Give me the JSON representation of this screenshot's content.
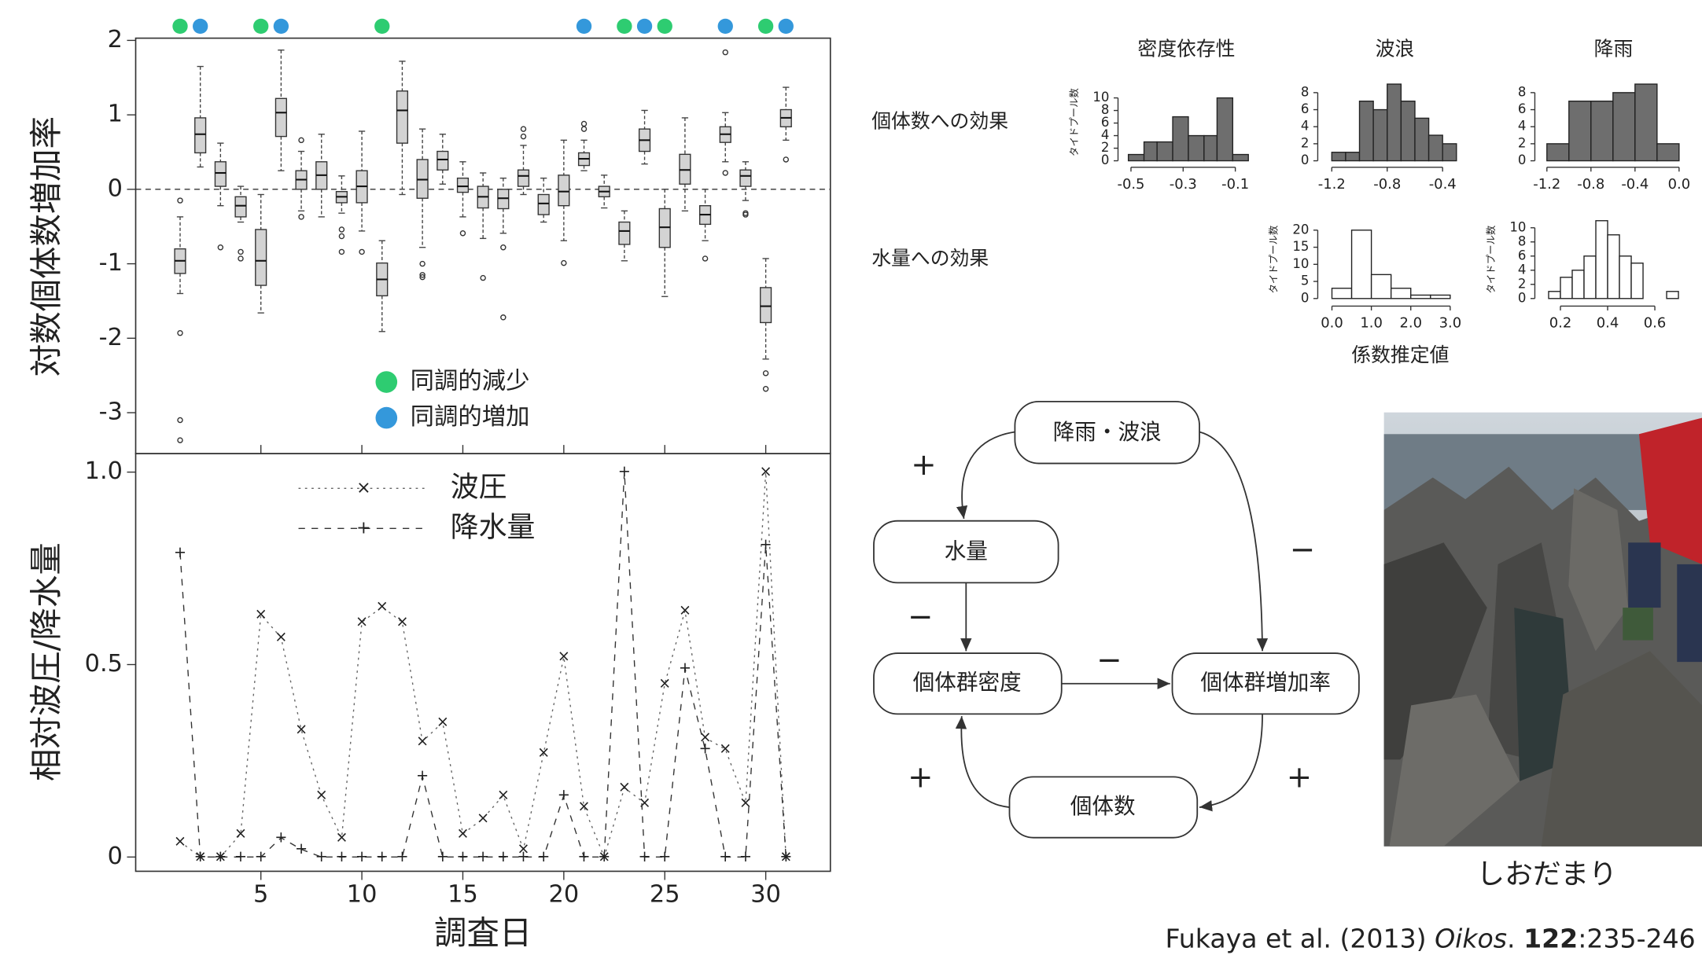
{
  "chart_data": [
    {
      "type": "box",
      "y_label": "対数個体数増加率",
      "xlim": [
        -1.2,
        33.2
      ],
      "ylim": [
        -3.55,
        2.03
      ],
      "yticks": [
        -3,
        -2,
        -1,
        0,
        1,
        2
      ],
      "reference_line": 0,
      "boxes": [
        {
          "x": 1,
          "median": -0.96,
          "q1": -1.13,
          "q3": -0.8,
          "whisker_low": -1.4,
          "whisker_high": -0.37,
          "outliers": [
            -0.15,
            -1.93,
            -3.1,
            -3.37
          ]
        },
        {
          "x": 2,
          "median": 0.74,
          "q1": 0.49,
          "q3": 0.96,
          "whisker_low": 0.3,
          "whisker_high": 1.65,
          "outliers": []
        },
        {
          "x": 3,
          "median": 0.22,
          "q1": 0.04,
          "q3": 0.37,
          "whisker_low": -0.22,
          "whisker_high": 0.62,
          "outliers": [
            -0.78
          ]
        },
        {
          "x": 4,
          "median": -0.22,
          "q1": -0.37,
          "q3": -0.1,
          "whisker_low": -0.44,
          "whisker_high": 0.04,
          "outliers": [
            -0.84,
            -0.93
          ]
        },
        {
          "x": 5,
          "median": -0.96,
          "q1": -1.29,
          "q3": -0.54,
          "whisker_low": -1.66,
          "whisker_high": -0.07,
          "outliers": []
        },
        {
          "x": 6,
          "median": 1.03,
          "q1": 0.71,
          "q3": 1.22,
          "whisker_low": 0.25,
          "whisker_high": 1.87,
          "outliers": []
        },
        {
          "x": 7,
          "median": 0.13,
          "q1": 0,
          "q3": 0.25,
          "whisker_low": -0.29,
          "whisker_high": 0.51,
          "outliers": [
            0.66,
            -0.37
          ]
        },
        {
          "x": 8,
          "median": 0.19,
          "q1": 0,
          "q3": 0.37,
          "whisker_low": -0.37,
          "whisker_high": 0.74,
          "outliers": []
        },
        {
          "x": 9,
          "median": -0.1,
          "q1": -0.18,
          "q3": -0.03,
          "whisker_low": -0.32,
          "whisker_high": 0.18,
          "outliers": [
            -0.54,
            -0.63,
            -0.84
          ]
        },
        {
          "x": 10,
          "median": 0.04,
          "q1": -0.18,
          "q3": 0.25,
          "whisker_low": -0.56,
          "whisker_high": 0.78,
          "outliers": [
            -0.84
          ]
        },
        {
          "x": 11,
          "median": -1.21,
          "q1": -1.43,
          "q3": -0.99,
          "whisker_low": -1.91,
          "whisker_high": -0.69,
          "outliers": []
        },
        {
          "x": 12,
          "median": 1.06,
          "q1": 0.62,
          "q3": 1.32,
          "whisker_low": -0.07,
          "whisker_high": 1.72,
          "outliers": []
        },
        {
          "x": 13,
          "median": 0.13,
          "q1": -0.12,
          "q3": 0.4,
          "whisker_low": -0.78,
          "whisker_high": 0.81,
          "outliers": [
            -1.0,
            -1.15,
            -1.18
          ]
        },
        {
          "x": 14,
          "median": 0.4,
          "q1": 0.26,
          "q3": 0.51,
          "whisker_low": 0.07,
          "whisker_high": 0.74,
          "outliers": []
        },
        {
          "x": 15,
          "median": 0.04,
          "q1": -0.04,
          "q3": 0.15,
          "whisker_low": -0.37,
          "whisker_high": 0.37,
          "outliers": [
            -0.59
          ]
        },
        {
          "x": 16,
          "median": -0.1,
          "q1": -0.25,
          "q3": 0.04,
          "whisker_low": -0.66,
          "whisker_high": 0.22,
          "outliers": [
            -1.19
          ]
        },
        {
          "x": 17,
          "median": -0.12,
          "q1": -0.26,
          "q3": 0,
          "whisker_low": -0.59,
          "whisker_high": 0.15,
          "outliers": [
            -0.78,
            -1.72
          ]
        },
        {
          "x": 18,
          "median": 0.18,
          "q1": 0.04,
          "q3": 0.26,
          "whisker_low": -0.07,
          "whisker_high": 0.59,
          "outliers": [
            0.81,
            0.71
          ]
        },
        {
          "x": 19,
          "median": -0.19,
          "q1": -0.34,
          "q3": -0.07,
          "whisker_low": -0.44,
          "whisker_high": 0.15,
          "outliers": []
        },
        {
          "x": 20,
          "median": -0.03,
          "q1": -0.22,
          "q3": 0.19,
          "whisker_low": -0.69,
          "whisker_high": 0.66,
          "outliers": [
            -0.99
          ]
        },
        {
          "x": 21,
          "median": 0.41,
          "q1": 0.32,
          "q3": 0.49,
          "whisker_low": 0.25,
          "whisker_high": 0.66,
          "outliers": [
            0.88,
            0.81
          ]
        },
        {
          "x": 22,
          "median": -0.03,
          "q1": -0.1,
          "q3": 0.04,
          "whisker_low": -0.25,
          "whisker_high": 0.19,
          "outliers": []
        },
        {
          "x": 23,
          "median": -0.56,
          "q1": -0.74,
          "q3": -0.44,
          "whisker_low": -0.96,
          "whisker_high": -0.29,
          "outliers": []
        },
        {
          "x": 24,
          "median": 0.66,
          "q1": 0.51,
          "q3": 0.81,
          "whisker_low": 0.34,
          "whisker_high": 1.06,
          "outliers": []
        },
        {
          "x": 25,
          "median": -0.51,
          "q1": -0.78,
          "q3": -0.26,
          "whisker_low": -1.44,
          "whisker_high": 0,
          "outliers": []
        },
        {
          "x": 26,
          "median": 0.26,
          "q1": 0.07,
          "q3": 0.47,
          "whisker_low": -0.29,
          "whisker_high": 0.96,
          "outliers": []
        },
        {
          "x": 27,
          "median": -0.34,
          "q1": -0.47,
          "q3": -0.22,
          "whisker_low": -0.69,
          "whisker_high": 0,
          "outliers": [
            -0.93
          ]
        },
        {
          "x": 28,
          "median": 0.74,
          "q1": 0.63,
          "q3": 0.84,
          "whisker_low": 0.37,
          "whisker_high": 1.03,
          "outliers": [
            1.84,
            0.22
          ]
        },
        {
          "x": 29,
          "median": 0.18,
          "q1": 0.04,
          "q3": 0.26,
          "whisker_low": -0.15,
          "whisker_high": 0.37,
          "outliers": [
            -0.32,
            -0.34
          ]
        },
        {
          "x": 30,
          "median": -1.57,
          "q1": -1.79,
          "q3": -1.32,
          "whisker_low": -2.28,
          "whisker_high": -0.93,
          "outliers": [
            -2.47,
            -2.68
          ]
        },
        {
          "x": 31,
          "median": 0.96,
          "q1": 0.84,
          "q3": 1.07,
          "whisker_low": 0.66,
          "whisker_high": 1.37,
          "outliers": [
            0.4
          ]
        }
      ],
      "markers": [
        {
          "name": "同調的減少",
          "color": "#2ecc71",
          "x": [
            1,
            5,
            11,
            23,
            25,
            30
          ]
        },
        {
          "name": "同調的増加",
          "color": "#3498db",
          "x": [
            2,
            6,
            21,
            24,
            28,
            31
          ]
        }
      ]
    },
    {
      "type": "line",
      "x_label": "調査日",
      "y_label": "相対波圧/降水量",
      "xlim": [
        -1.2,
        33.2
      ],
      "xticks": [
        5,
        10,
        15,
        20,
        25,
        30
      ],
      "ylim": [
        -0.037,
        1.048
      ],
      "yticks": [
        0,
        0.5,
        {
          "value": 1,
          "label": "1.0"
        }
      ],
      "x": [
        1,
        2,
        3,
        4,
        5,
        6,
        7,
        8,
        9,
        10,
        11,
        12,
        13,
        14,
        15,
        16,
        17,
        18,
        19,
        20,
        21,
        22,
        23,
        24,
        25,
        26,
        27,
        28,
        29,
        30,
        31
      ],
      "series": [
        {
          "name": "波圧",
          "marker": "×",
          "dash": "2,4",
          "color": "#666666",
          "values": [
            0.04,
            0,
            0,
            0.06,
            0.63,
            0.57,
            0.33,
            0.16,
            0.05,
            0.61,
            0.65,
            0.61,
            0.3,
            0.35,
            0.06,
            0.1,
            0.16,
            0.02,
            0.27,
            0.52,
            0.13,
            0,
            0.18,
            0.14,
            0.45,
            0.64,
            0.31,
            0.28,
            0.14,
            1.0,
            0
          ]
        },
        {
          "name": "降水量",
          "marker": "+",
          "dash": "6,6",
          "color": "#333333",
          "values": [
            0.79,
            0,
            0,
            0,
            0,
            0.05,
            0.02,
            0,
            0,
            0,
            0,
            0,
            0.21,
            0,
            0,
            0,
            0,
            0,
            0,
            0.16,
            0,
            0,
            1.0,
            0,
            0,
            0.49,
            0.28,
            0,
            0,
            0.81,
            0
          ]
        }
      ]
    },
    {
      "type": "histogram",
      "title": "密度依存性",
      "row_label": "個体数への効果",
      "y_label": "タイドプール数",
      "color": "#6e6e6e",
      "xlim": [
        -0.533,
        -0.042
      ],
      "xticks": [
        -0.5,
        -0.3,
        -0.1
      ],
      "ylim": [
        -0.34,
        12.6
      ],
      "yticks": [
        0,
        2,
        4,
        6,
        8,
        10
      ],
      "bins": [
        -0.51,
        -0.45,
        -0.4,
        -0.34,
        -0.28,
        -0.22,
        -0.17,
        -0.11,
        -0.05
      ],
      "counts": [
        1,
        3,
        3,
        7,
        4,
        4,
        10,
        1
      ]
    },
    {
      "type": "histogram",
      "title": "波浪",
      "color": "#6e6e6e",
      "xlim": [
        -1.27,
        -0.22
      ],
      "xticks": [
        -1.2,
        -0.8,
        -0.4
      ],
      "ylim": [
        -0.25,
        9.3
      ],
      "yticks": [
        0,
        2,
        4,
        6,
        8
      ],
      "bins": [
        -1.2,
        -1.1,
        -1.0,
        -0.9,
        -0.8,
        -0.7,
        -0.6,
        -0.5,
        -0.4,
        -0.3
      ],
      "counts": [
        1,
        1,
        7,
        6,
        9,
        7,
        5,
        3,
        2
      ]
    },
    {
      "type": "histogram",
      "title": "降雨",
      "color": "#6e6e6e",
      "xlim": [
        -1.27,
        0.08
      ],
      "xticks": [
        -1.2,
        -0.8,
        -0.4,
        {
          "value": 0,
          "label": "0.0"
        }
      ],
      "ylim": [
        -0.25,
        9.3
      ],
      "yticks": [
        0,
        2,
        4,
        6,
        8
      ],
      "bins": [
        -1.2,
        -1.0,
        -0.8,
        -0.6,
        -0.4,
        -0.2,
        0
      ],
      "counts": [
        2,
        7,
        7,
        8,
        9,
        2
      ]
    },
    {
      "type": "histogram",
      "row_label": "水量への効果",
      "y_label": "タイドプール数",
      "x_label": "係数推定値",
      "color": "#ffffff",
      "xlim": [
        -0.25,
        3.44
      ],
      "xticks": [
        {
          "value": 0,
          "label": "0.0"
        },
        {
          "value": 1,
          "label": "1.0"
        },
        {
          "value": 2,
          "label": "2.0"
        },
        {
          "value": 3,
          "label": "3.0"
        }
      ],
      "ylim": [
        -0.95,
        23.8
      ],
      "yticks": [
        0,
        5,
        10,
        15,
        20
      ],
      "bins": [
        0,
        0.5,
        1.0,
        1.5,
        2.0,
        2.5,
        3.0
      ],
      "counts": [
        3,
        20,
        7,
        3,
        1,
        1
      ]
    },
    {
      "type": "histogram",
      "y_label": "タイドプール数",
      "color": "#ffffff",
      "xlim": [
        0.11,
        0.74
      ],
      "xticks": [
        0.2,
        0.4,
        0.6
      ],
      "ylim": [
        -0.46,
        11.5
      ],
      "yticks": [
        0,
        2,
        4,
        6,
        8,
        10
      ],
      "bins": [
        0.15,
        0.2,
        0.25,
        0.3,
        0.35,
        0.4,
        0.45,
        0.5,
        0.55,
        0.6,
        0.65,
        0.7
      ],
      "counts": [
        1,
        3,
        4,
        6,
        11,
        9,
        6,
        5,
        0,
        0,
        1
      ]
    }
  ],
  "diagram": {
    "nodes": [
      "降雨・波浪",
      "水量",
      "個体群密度",
      "個体群増加率",
      "個体数"
    ],
    "signs": [
      "+",
      "−",
      "−",
      "−",
      "+",
      "+"
    ]
  },
  "photo_caption": "しおだまり",
  "citation": [
    "Fukaya et al. (2013) ",
    "Oikos",
    ". ",
    "122",
    ":235-246"
  ]
}
